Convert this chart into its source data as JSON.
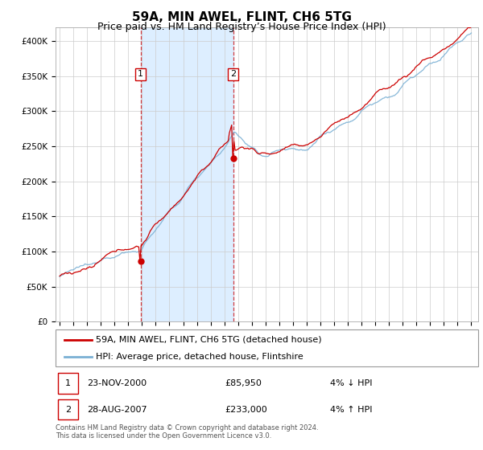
{
  "title": "59A, MIN AWEL, FLINT, CH6 5TG",
  "subtitle": "Price paid vs. HM Land Registry’s House Price Index (HPI)",
  "title_fontsize": 11,
  "subtitle_fontsize": 9,
  "hpi_color": "#7ab0d4",
  "price_color": "#cc0000",
  "highlight_bg": "#ddeeff",
  "ylim": [
    0,
    420000
  ],
  "yticks": [
    0,
    50000,
    100000,
    150000,
    200000,
    250000,
    300000,
    350000,
    400000
  ],
  "ytick_labels": [
    "£0",
    "£50K",
    "£100K",
    "£150K",
    "£200K",
    "£250K",
    "£300K",
    "£350K",
    "£400K"
  ],
  "year_start": 1995,
  "year_end": 2025,
  "sale1_year": 2000.9,
  "sale1_price": 85950,
  "sale2_year": 2007.65,
  "sale2_price": 233000,
  "legend_label1": "59A, MIN AWEL, FLINT, CH6 5TG (detached house)",
  "legend_label2": "HPI: Average price, detached house, Flintshire",
  "table_row1_num": "1",
  "table_row1_date": "23-NOV-2000",
  "table_row1_price": "£85,950",
  "table_row1_hpi": "4% ↓ HPI",
  "table_row2_num": "2",
  "table_row2_date": "28-AUG-2007",
  "table_row2_price": "£233,000",
  "table_row2_hpi": "4% ↑ HPI",
  "footnote1": "Contains HM Land Registry data © Crown copyright and database right 2024.",
  "footnote2": "This data is licensed under the Open Government Licence v3.0.",
  "background_color": "#ffffff"
}
